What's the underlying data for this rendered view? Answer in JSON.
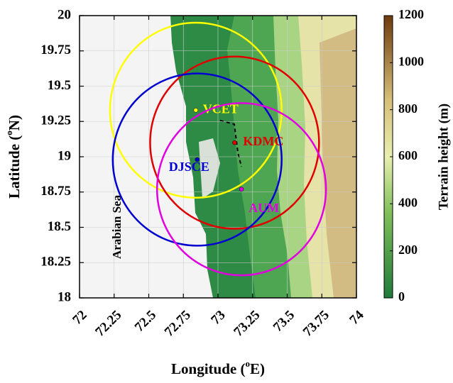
{
  "chart_data": {
    "type": "map",
    "x_label": [
      "Longitude (",
      "o",
      "E)"
    ],
    "y_label": [
      "Latitude (",
      "o",
      "N)"
    ],
    "xlim": [
      72,
      74
    ],
    "xticks": [
      72,
      72.25,
      72.5,
      72.75,
      73,
      73.25,
      73.5,
      73.75,
      74
    ],
    "ylim": [
      18,
      20
    ],
    "yticks": [
      18,
      18.25,
      18.5,
      18.75,
      19,
      19.25,
      19.5,
      19.75,
      20
    ],
    "grid": true,
    "annotation": "Arabian Sea",
    "sites": [
      {
        "name": "VCET",
        "color": "#ffff00",
        "lon": 72.84,
        "lat": 19.33,
        "radius": 0.62
      },
      {
        "name": "KDMC",
        "color": "#e00000",
        "lon": 73.12,
        "lat": 19.1,
        "radius": 0.61
      },
      {
        "name": "DJSCE",
        "color": "#0000d0",
        "lon": 72.85,
        "lat": 18.98,
        "radius": 0.61
      },
      {
        "name": "AUM",
        "color": "#e000e0",
        "lon": 73.17,
        "lat": 18.77,
        "radius": 0.61
      }
    ],
    "colorbar": {
      "label": "Terrain height (m)",
      "clim": [
        0,
        1200
      ],
      "ticks": [
        0,
        200,
        400,
        600,
        800,
        1000,
        1200
      ]
    }
  }
}
